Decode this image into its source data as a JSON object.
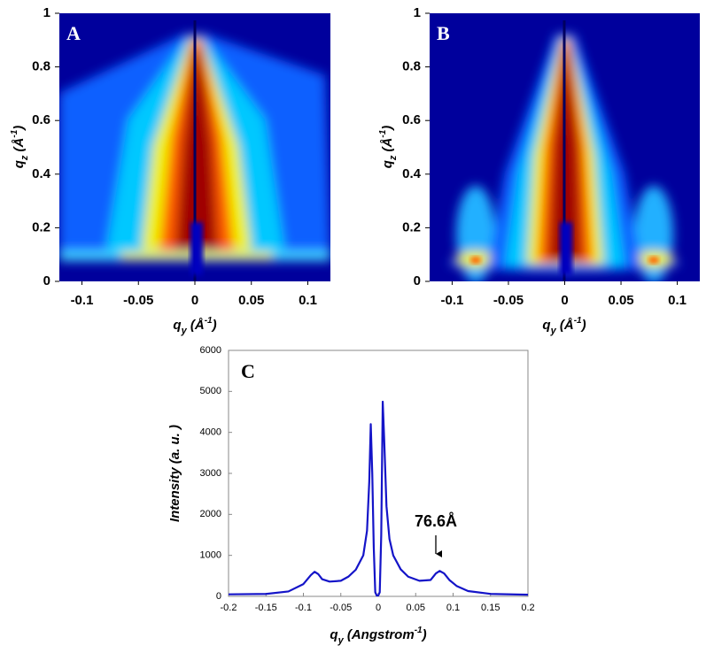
{
  "chart_data": [
    {
      "type": "heatmap",
      "panel_label": "A",
      "xlabel": [
        {
          "text": "q"
        },
        {
          "text": "y",
          "sub": true
        },
        {
          "text": " (Å"
        },
        {
          "text": "-1",
          "sup": true
        },
        {
          "text": ")"
        }
      ],
      "ylabel": [
        {
          "text": "q"
        },
        {
          "text": "z",
          "sub": true
        },
        {
          "text": " (Å"
        },
        {
          "text": "-1",
          "sup": true
        },
        {
          "text": ")"
        }
      ],
      "xlim": [
        -0.12,
        0.12
      ],
      "ylim": [
        0,
        1
      ],
      "xticks": [
        -0.1,
        -0.05,
        0,
        0.05,
        0.1
      ],
      "yticks": [
        0,
        0.2,
        0.4,
        0.6,
        0.8,
        1
      ]
    },
    {
      "type": "heatmap",
      "panel_label": "B",
      "xlabel": [
        {
          "text": "q"
        },
        {
          "text": "y",
          "sub": true
        },
        {
          "text": " (Å"
        },
        {
          "text": "-1",
          "sup": true
        },
        {
          "text": ")"
        }
      ],
      "ylabel": [
        {
          "text": "q"
        },
        {
          "text": "z",
          "sub": true
        },
        {
          "text": " (Å"
        },
        {
          "text": "-1",
          "sup": true
        },
        {
          "text": ")"
        }
      ],
      "xlim": [
        -0.12,
        0.12
      ],
      "ylim": [
        0,
        1
      ],
      "xticks": [
        -0.1,
        -0.05,
        0,
        0.05,
        0.1
      ],
      "yticks": [
        0,
        0.2,
        0.4,
        0.6,
        0.8,
        1
      ]
    },
    {
      "type": "line",
      "panel_label": "C",
      "xlabel": [
        {
          "text": "q"
        },
        {
          "text": "y",
          "sub": true
        },
        {
          "text": " (Angstrom"
        },
        {
          "text": "-1",
          "sup": true
        },
        {
          "text": ")"
        }
      ],
      "ylabel": "Intensity (a. u. )",
      "xlim": [
        -0.2,
        0.2
      ],
      "ylim": [
        0,
        6000
      ],
      "xticks": [
        -0.2,
        -0.15,
        -0.1,
        -0.05,
        0,
        0.05,
        0.1,
        0.15,
        0.2
      ],
      "yticks": [
        0,
        1000,
        2000,
        3000,
        4000,
        5000,
        6000
      ],
      "x": [
        -0.2,
        -0.15,
        -0.12,
        -0.1,
        -0.09,
        -0.085,
        -0.08,
        -0.075,
        -0.065,
        -0.05,
        -0.04,
        -0.03,
        -0.02,
        -0.015,
        -0.012,
        -0.01,
        -0.008,
        -0.006,
        -0.004,
        -0.002,
        0,
        0.002,
        0.004,
        0.006,
        0.008,
        0.011,
        0.015,
        0.02,
        0.03,
        0.04,
        0.055,
        0.07,
        0.077,
        0.082,
        0.088,
        0.095,
        0.105,
        0.12,
        0.15,
        0.2
      ],
      "series": [
        {
          "color": "#1414c8",
          "values": [
            50,
            60,
            120,
            300,
            520,
            600,
            540,
            420,
            360,
            380,
            480,
            650,
            1000,
            1600,
            2800,
            4200,
            3000,
            1200,
            100,
            20,
            20,
            100,
            1500,
            4750,
            3800,
            2200,
            1400,
            1000,
            660,
            480,
            380,
            400,
            560,
            620,
            560,
            400,
            250,
            130,
            60,
            40
          ]
        }
      ],
      "annotations": [
        "76.6Å"
      ]
    }
  ]
}
